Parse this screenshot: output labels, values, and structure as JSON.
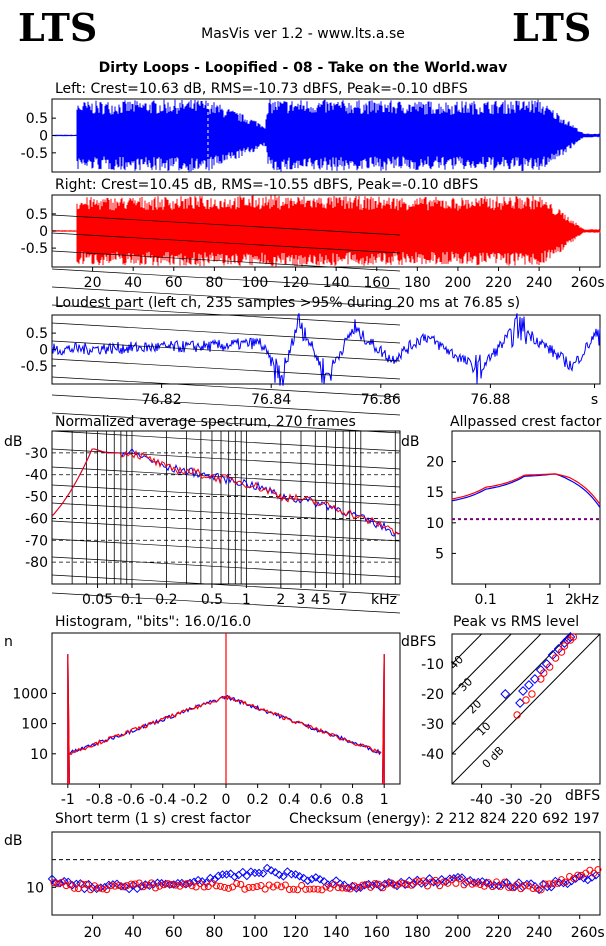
{
  "header": {
    "logo_left": "LTS",
    "logo_right": "LTS",
    "app_title": "MasVis ver 1.2 - www.lts.a.se",
    "file_title": "Dirty Loops - Loopified - 08 - Take on the World.wav"
  },
  "colors": {
    "left_channel": "#0000ff",
    "right_channel": "#ff0000",
    "axis": "#000000"
  },
  "chart_data": [
    {
      "id": "left-waveform",
      "type": "area",
      "title": "Left: Crest=10.63 dB, RMS=-10.73 dBFS, Peak=-0.10 dBFS",
      "yticks": [
        "0.5",
        "0",
        "-0.5"
      ],
      "ylim": [
        -1,
        1
      ],
      "xlim": [
        0,
        270
      ],
      "series": [
        {
          "values": [
            {
              "x": 12,
              "amp": 0.9
            },
            {
              "x": 77,
              "amp": 0.95
            },
            {
              "x": 105,
              "amp": 0.3
            },
            {
              "x": 107,
              "amp": 0.95
            },
            {
              "x": 200,
              "amp": 0.9
            },
            {
              "x": 240,
              "amp": 0.95
            },
            {
              "x": 252,
              "amp": 0.5
            },
            {
              "x": 262,
              "amp": 0.05
            }
          ]
        }
      ]
    },
    {
      "id": "right-waveform",
      "type": "area",
      "title": "Right: Crest=10.45 dB, RMS=-10.55 dBFS, Peak=-0.10 dBFS",
      "yticks": [
        "0.5",
        "0",
        "-0.5"
      ],
      "ylim": [
        -1,
        1
      ],
      "xlim": [
        0,
        270
      ],
      "xticks": [
        "20",
        "40",
        "60",
        "80",
        "100",
        "120",
        "140",
        "160",
        "180",
        "200",
        "220",
        "240",
        "260s"
      ],
      "series": [
        {
          "values": [
            {
              "x": 12,
              "amp": 0.9
            },
            {
              "x": 107,
              "amp": 0.95
            },
            {
              "x": 200,
              "amp": 0.9
            },
            {
              "x": 240,
              "amp": 0.95
            },
            {
              "x": 252,
              "amp": 0.5
            },
            {
              "x": 262,
              "amp": 0.05
            }
          ]
        }
      ]
    },
    {
      "id": "loudest-part",
      "type": "line",
      "title": "Loudest part (left  ch, 235 samples >95% during 20 ms at 76.85 s)",
      "yticks": [
        "0.5",
        "0",
        "-0.5"
      ],
      "ylim": [
        -1,
        1
      ],
      "xlim": [
        76.8,
        76.9
      ],
      "xticks": [
        "76.82",
        "76.84",
        "76.86",
        "76.88",
        "s"
      ],
      "series": [
        {
          "values": [
            {
              "x": 76.8,
              "y": 0.0
            },
            {
              "x": 76.815,
              "y": 0.05
            },
            {
              "x": 76.83,
              "y": 0.1
            },
            {
              "x": 76.838,
              "y": 0.2
            },
            {
              "x": 76.842,
              "y": -0.9
            },
            {
              "x": 76.845,
              "y": 0.9
            },
            {
              "x": 76.85,
              "y": -0.8
            },
            {
              "x": 76.855,
              "y": 0.6
            },
            {
              "x": 76.862,
              "y": -0.3
            },
            {
              "x": 76.868,
              "y": 0.4
            },
            {
              "x": 76.878,
              "y": -0.6
            },
            {
              "x": 76.885,
              "y": 0.7
            },
            {
              "x": 76.895,
              "y": -0.5
            },
            {
              "x": 76.9,
              "y": 0.6
            }
          ]
        }
      ]
    },
    {
      "id": "average-spectrum",
      "type": "line",
      "title": "Normalized average spectrum, 270 frames",
      "ylabel": "dB",
      "ylim": [
        -90,
        -20
      ],
      "xscale": "log",
      "xlim": [
        0.02,
        22
      ],
      "yticks": [
        "-30",
        "-40",
        "-50",
        "-60",
        "-70",
        "-80"
      ],
      "xticks": [
        "0.05",
        "0.1",
        "0.2",
        "0.5",
        "1",
        "2",
        "3",
        "4",
        "5",
        "7",
        "kHz"
      ],
      "series": [
        {
          "values": [
            {
              "x": 0.02,
              "y": -59
            },
            {
              "x": 0.035,
              "y": -40
            },
            {
              "x": 0.045,
              "y": -28
            },
            {
              "x": 0.06,
              "y": -30
            },
            {
              "x": 0.1,
              "y": -30
            },
            {
              "x": 0.2,
              "y": -37
            },
            {
              "x": 0.5,
              "y": -41
            },
            {
              "x": 1,
              "y": -44
            },
            {
              "x": 2,
              "y": -50
            },
            {
              "x": 5,
              "y": -54
            },
            {
              "x": 10,
              "y": -60
            },
            {
              "x": 22,
              "y": -68
            }
          ]
        },
        {
          "values": [
            {
              "x": 0.02,
              "y": -59
            },
            {
              "x": 0.035,
              "y": -40
            },
            {
              "x": 0.045,
              "y": -28
            },
            {
              "x": 0.06,
              "y": -30
            },
            {
              "x": 0.1,
              "y": -30
            },
            {
              "x": 0.2,
              "y": -37
            },
            {
              "x": 0.5,
              "y": -41
            },
            {
              "x": 1,
              "y": -44
            },
            {
              "x": 2,
              "y": -50
            },
            {
              "x": 5,
              "y": -54
            },
            {
              "x": 10,
              "y": -60
            },
            {
              "x": 22,
              "y": -67
            }
          ]
        }
      ]
    },
    {
      "id": "allpassed-crest",
      "type": "line",
      "title": "Allpassed crest factor",
      "ylabel": "dB",
      "ylim": [
        0,
        25
      ],
      "xscale": "log",
      "xlim": [
        0.03,
        6
      ],
      "yticks": [
        "20",
        "15",
        "10",
        "5"
      ],
      "xticks": [
        "0.1",
        "1",
        "2",
        "kHz"
      ],
      "reference_line": 10.6,
      "series": [
        {
          "values": [
            {
              "x": 0.03,
              "y": 13.6
            },
            {
              "x": 0.1,
              "y": 15.5
            },
            {
              "x": 0.4,
              "y": 17.6
            },
            {
              "x": 1.2,
              "y": 18.0
            },
            {
              "x": 2,
              "y": 17.0
            },
            {
              "x": 6,
              "y": 12.5
            }
          ]
        },
        {
          "values": [
            {
              "x": 0.03,
              "y": 13.9
            },
            {
              "x": 0.1,
              "y": 15.8
            },
            {
              "x": 0.4,
              "y": 17.8
            },
            {
              "x": 1.2,
              "y": 18.0
            },
            {
              "x": 2,
              "y": 17.4
            },
            {
              "x": 6,
              "y": 13.0
            }
          ]
        }
      ]
    },
    {
      "id": "histogram",
      "type": "line",
      "title": "Histogram, \"bits\": 16.0/16.0",
      "ylabel": "n",
      "yscale": "log",
      "ylim": [
        1,
        100000
      ],
      "xlim": [
        -1.1,
        1.1
      ],
      "yticks": [
        "1000",
        "100",
        "10"
      ],
      "xticks": [
        "-1",
        "-0.8",
        "-0.6",
        "-0.4",
        "-0.2",
        "0",
        "0.2",
        "0.4",
        "0.6",
        "0.8",
        "1"
      ],
      "series": [
        {
          "values": [
            {
              "x": -1,
              "y": 20000
            },
            {
              "x": -0.99,
              "y": 10
            },
            {
              "x": -0.5,
              "y": 80
            },
            {
              "x": -0.1,
              "y": 450
            },
            {
              "x": 0,
              "y": 800
            },
            {
              "x": 0.1,
              "y": 450
            },
            {
              "x": 0.5,
              "y": 80
            },
            {
              "x": 0.99,
              "y": 10
            },
            {
              "x": 1,
              "y": 20000
            }
          ]
        },
        {
          "values": [
            {
              "x": -1,
              "y": 20000
            },
            {
              "x": -0.99,
              "y": 9
            },
            {
              "x": -0.5,
              "y": 75
            },
            {
              "x": -0.1,
              "y": 430
            },
            {
              "x": 0,
              "y": 100000
            },
            {
              "x": 0.1,
              "y": 430
            },
            {
              "x": 0.5,
              "y": 75
            },
            {
              "x": 0.99,
              "y": 9
            },
            {
              "x": 1,
              "y": 20000
            }
          ]
        }
      ]
    },
    {
      "id": "peak-vs-rms",
      "type": "scatter",
      "title": "Peak vs RMS level",
      "ylabel": "dBFS",
      "xlabel": "dBFS",
      "xlim": [
        -50,
        0
      ],
      "ylim": [
        -50,
        0
      ],
      "yticks": [
        "-10",
        "-20",
        "-30",
        "-40"
      ],
      "xticks": [
        "-40",
        "-30",
        "-20"
      ],
      "crest_lines": [
        "40",
        "30",
        "20",
        "10",
        "0 dB"
      ],
      "series": [
        {
          "values": [
            [
              -32,
              -20
            ],
            [
              -27,
              -23
            ],
            [
              -26,
              -19
            ],
            [
              -24,
              -17
            ],
            [
              -22,
              -15
            ],
            [
              -20,
              -12
            ],
            [
              -18,
              -10
            ],
            [
              -16,
              -7
            ],
            [
              -14,
              -5
            ],
            [
              -12,
              -3
            ],
            [
              -11,
              -2
            ],
            [
              -10,
              -1
            ]
          ]
        },
        {
          "values": [
            [
              -28,
              -27
            ],
            [
              -25,
              -22
            ],
            [
              -23,
              -20
            ],
            [
              -20,
              -15
            ],
            [
              -19,
              -13
            ],
            [
              -17,
              -11
            ],
            [
              -15,
              -8
            ],
            [
              -13,
              -6
            ],
            [
              -12,
              -4
            ],
            [
              -10,
              -2
            ],
            [
              -9,
              -1
            ]
          ]
        }
      ]
    },
    {
      "id": "short-term-crest",
      "type": "scatter",
      "title": "Short term (1 s) crest factor",
      "annotation": "Checksum (energy):  2 212 824 220 692 197",
      "ylabel": "dB",
      "ylim": [
        5,
        20
      ],
      "xlim": [
        0,
        270
      ],
      "yticks": [
        "10"
      ],
      "reference_line": 15,
      "xticks": [
        "20",
        "40",
        "60",
        "80",
        "100",
        "120",
        "140",
        "160",
        "180",
        "200",
        "220",
        "240",
        "260s"
      ],
      "series": [
        {
          "values": [
            {
              "x": 0,
              "y": 11
            },
            {
              "x": 20,
              "y": 10
            },
            {
              "x": 60,
              "y": 10.5
            },
            {
              "x": 107,
              "y": 13
            },
            {
              "x": 150,
              "y": 10
            },
            {
              "x": 200,
              "y": 11.5
            },
            {
              "x": 240,
              "y": 10
            },
            {
              "x": 266,
              "y": 12
            }
          ]
        },
        {
          "values": [
            {
              "x": 0,
              "y": 10.5
            },
            {
              "x": 20,
              "y": 10
            },
            {
              "x": 60,
              "y": 10.5
            },
            {
              "x": 107,
              "y": 10
            },
            {
              "x": 150,
              "y": 10
            },
            {
              "x": 200,
              "y": 11
            },
            {
              "x": 240,
              "y": 10
            },
            {
              "x": 266,
              "y": 13
            }
          ]
        }
      ]
    }
  ]
}
